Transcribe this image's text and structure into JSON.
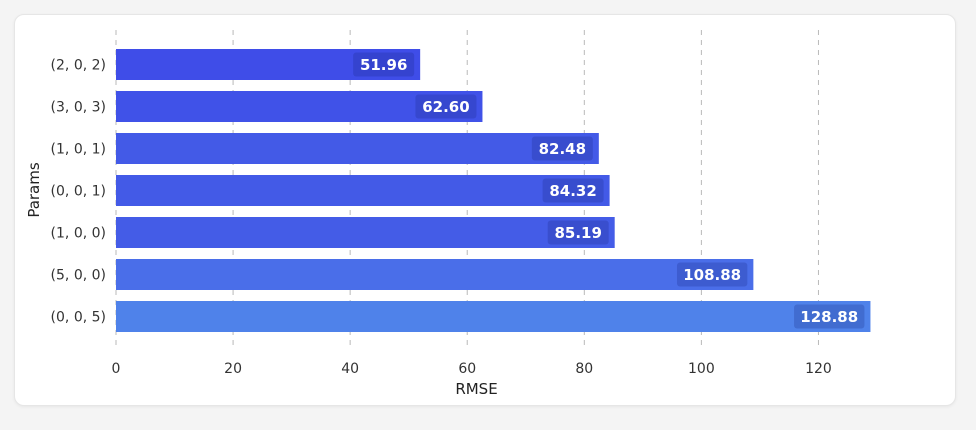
{
  "chart_data": {
    "type": "bar",
    "orientation": "horizontal",
    "categories": [
      "(2, 0, 2)",
      "(3, 0, 3)",
      "(1, 0, 1)",
      "(0, 0, 1)",
      "(1, 0, 0)",
      "(5, 0, 0)",
      "(0, 0, 5)"
    ],
    "values": [
      51.96,
      62.6,
      82.48,
      84.32,
      85.19,
      108.88,
      128.88
    ],
    "value_labels": [
      "51.96",
      "62.60",
      "82.48",
      "84.32",
      "85.19",
      "108.88",
      "128.88"
    ],
    "colors": [
      "#3f4de8",
      "#4052e8",
      "#435ae7",
      "#435ae7",
      "#445ce7",
      "#4a6ee9",
      "#4f82ea"
    ],
    "xlabel": "RMSE",
    "ylabel": "Params",
    "xlim": [
      0,
      130
    ],
    "xticks": [
      0,
      20,
      40,
      60,
      80,
      100,
      120
    ],
    "grid": "vertical-dashed",
    "legend": "none"
  }
}
